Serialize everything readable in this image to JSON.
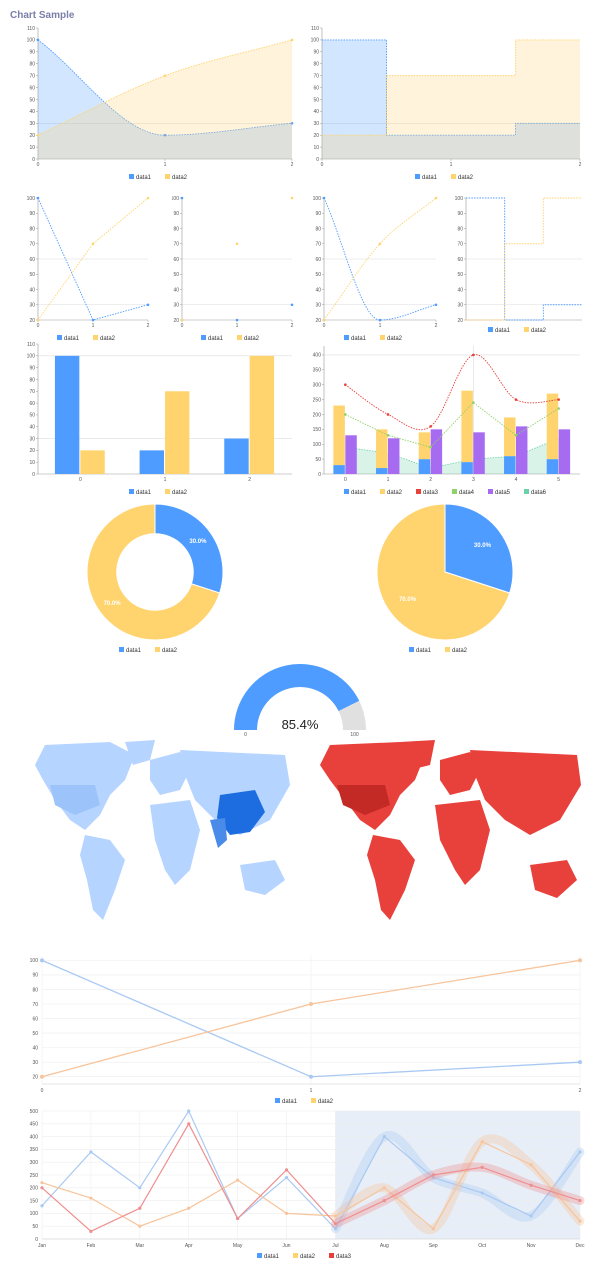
{
  "page_title": "Chart Sample",
  "colors": {
    "data1": "#4e9cff",
    "data2": "#ffd36e",
    "data3": "#e8403b",
    "data4": "#8fd16a",
    "data5": "#a76bf2",
    "data6": "#6ad1a8",
    "axis": "#999999",
    "grid": "#dddddd",
    "gauge_bg": "#e0e0e0",
    "map_blue_light": "#b5d4ff",
    "map_blue_mid": "#9cc4fa",
    "map_blue_dark": "#1e6de0",
    "map_red": "#e8403b",
    "map_red_dark": "#c42a25",
    "soft_blue": "#a9c9f3",
    "soft_orange": "#f7c49b",
    "soft_red": "#ef8e8e",
    "region_bg": "#e7eef7"
  },
  "legend_labels": [
    "data1",
    "data2",
    "data3",
    "data4",
    "data5",
    "data6"
  ],
  "chart_data": [
    {
      "id": "area-spline",
      "type": "area",
      "x": [
        0,
        1,
        2
      ],
      "series": [
        {
          "name": "data1",
          "values": [
            100,
            20,
            30
          ]
        },
        {
          "name": "data2",
          "values": [
            20,
            70,
            100
          ]
        }
      ],
      "ylim": [
        0,
        110
      ],
      "yticks": [
        0,
        10,
        20,
        30,
        40,
        50,
        60,
        70,
        80,
        90,
        100,
        110
      ],
      "xticks": [
        "0",
        "1",
        "2"
      ],
      "grid_y": [
        30
      ],
      "legend": "bottom"
    },
    {
      "id": "area-step",
      "type": "area",
      "x": [
        0,
        1,
        2
      ],
      "series": [
        {
          "name": "data1",
          "values": [
            100,
            20,
            30
          ]
        },
        {
          "name": "data2",
          "values": [
            20,
            70,
            100
          ]
        }
      ],
      "ylim": [
        0,
        110
      ],
      "yticks": [
        0,
        10,
        20,
        30,
        40,
        50,
        60,
        70,
        80,
        90,
        100,
        110
      ],
      "xticks": [
        "0",
        "1",
        "2"
      ],
      "grid_y": [
        30
      ],
      "legend": "bottom"
    },
    {
      "id": "line",
      "type": "line",
      "x": [
        0,
        1,
        2
      ],
      "series": [
        {
          "name": "data1",
          "values": [
            100,
            20,
            30
          ]
        },
        {
          "name": "data2",
          "values": [
            20,
            70,
            100
          ]
        }
      ],
      "ylim": [
        20,
        100
      ],
      "yticks": [
        20,
        30,
        40,
        50,
        60,
        70,
        80,
        90,
        100
      ],
      "xticks": [
        "0",
        "1",
        "2"
      ],
      "grid_y": [
        30,
        60
      ],
      "legend": "bottom"
    },
    {
      "id": "scatter",
      "type": "scatter",
      "x": [
        0,
        1,
        2
      ],
      "series": [
        {
          "name": "data1",
          "values": [
            100,
            20,
            30
          ]
        },
        {
          "name": "data2",
          "values": [
            20,
            70,
            100
          ]
        }
      ],
      "ylim": [
        20,
        100
      ],
      "yticks": [
        20,
        30,
        40,
        50,
        60,
        70,
        80,
        90,
        100
      ],
      "xticks": [
        "0",
        "1",
        "2"
      ],
      "grid_y": [
        30,
        60
      ],
      "legend": "bottom"
    },
    {
      "id": "spline",
      "type": "line",
      "x": [
        0,
        1,
        2
      ],
      "series": [
        {
          "name": "data1",
          "values": [
            100,
            20,
            30
          ]
        },
        {
          "name": "data2",
          "values": [
            20,
            70,
            100
          ]
        }
      ],
      "ylim": [
        20,
        100
      ],
      "yticks": [
        20,
        30,
        40,
        50,
        60,
        70,
        80,
        90,
        100
      ],
      "xticks": [
        "0",
        "1",
        "2"
      ],
      "grid_y": [
        30,
        60
      ],
      "legend": "bottom"
    },
    {
      "id": "step",
      "type": "line",
      "x": [
        0,
        1,
        2
      ],
      "series": [
        {
          "name": "data1",
          "values": [
            100,
            20,
            30
          ]
        },
        {
          "name": "data2",
          "values": [
            20,
            70,
            100
          ]
        }
      ],
      "ylim": [
        20,
        100
      ],
      "yticks": [
        20,
        30,
        40,
        50,
        60,
        70,
        80,
        90,
        100
      ],
      "xticks": [],
      "grid_y": [
        30,
        60
      ],
      "legend": "bottom"
    },
    {
      "id": "bar",
      "type": "bar",
      "categories": [
        "0",
        "1",
        "2"
      ],
      "series": [
        {
          "name": "data1",
          "values": [
            100,
            20,
            30
          ]
        },
        {
          "name": "data2",
          "values": [
            20,
            70,
            100
          ]
        }
      ],
      "ylim": [
        0,
        110
      ],
      "yticks": [
        0,
        10,
        20,
        30,
        40,
        50,
        60,
        70,
        80,
        90,
        100,
        110
      ],
      "grid_y": [
        30,
        100
      ],
      "legend": "bottom"
    },
    {
      "id": "combo",
      "type": "bar",
      "categories": [
        "0",
        "1",
        "2",
        "3",
        "4",
        "5"
      ],
      "stacked_bars": [
        {
          "name": "data1",
          "values": [
            30,
            20,
            50,
            40,
            60,
            50
          ]
        },
        {
          "name": "data2",
          "values": [
            200,
            130,
            90,
            240,
            130,
            220
          ]
        }
      ],
      "bars": [
        {
          "name": "data5",
          "values": [
            130,
            120,
            150,
            140,
            160,
            150
          ]
        }
      ],
      "lines": [
        {
          "name": "data3",
          "style": "spline",
          "values": [
            300,
            200,
            160,
            400,
            250,
            250
          ]
        },
        {
          "name": "data4",
          "style": "line",
          "values": [
            200,
            130,
            90,
            240,
            130,
            220
          ]
        }
      ],
      "areas": [
        {
          "name": "data6",
          "values": [
            90,
            70,
            20,
            50,
            60,
            120
          ]
        }
      ],
      "ylim": [
        0,
        430
      ],
      "yticks": [
        0,
        50,
        100,
        150,
        200,
        250,
        300,
        350,
        400
      ],
      "grid_y": [
        400
      ],
      "grid_x": [
        "3"
      ],
      "legend": "bottom"
    },
    {
      "id": "donut",
      "type": "pie",
      "donut": true,
      "series": [
        {
          "name": "data1",
          "value": 30
        },
        {
          "name": "data2",
          "value": 70
        }
      ],
      "labels": [
        "30.0%",
        "70.0%"
      ],
      "legend": "bottom"
    },
    {
      "id": "pie",
      "type": "pie",
      "series": [
        {
          "name": "data1",
          "value": 30
        },
        {
          "name": "data2",
          "value": 70
        }
      ],
      "labels": [
        "30.0%",
        "70.0%"
      ],
      "legend": "bottom"
    },
    {
      "id": "gauge",
      "type": "gauge",
      "value": 85.4,
      "min": 0,
      "max": 100,
      "label": "85.4%",
      "min_label": "0",
      "max_label": "100"
    },
    {
      "id": "big-line",
      "type": "line",
      "x": [
        0,
        1,
        2
      ],
      "series": [
        {
          "name": "data1",
          "values": [
            100,
            20,
            30
          ]
        },
        {
          "name": "data2",
          "values": [
            20,
            70,
            100
          ]
        }
      ],
      "ylim": [
        15,
        103
      ],
      "yticks": [
        20,
        30,
        40,
        50,
        60,
        70,
        80,
        90,
        100
      ],
      "xticks": [
        "0",
        "1",
        "2"
      ],
      "legend": "bottom"
    },
    {
      "id": "monthly",
      "type": "line",
      "categories": [
        "Jan",
        "Feb",
        "Mar",
        "Apr",
        "May",
        "Jun",
        "Jul",
        "Aug",
        "Sep",
        "Oct",
        "Nov",
        "Dec"
      ],
      "series": [
        {
          "name": "data1",
          "values": [
            130,
            340,
            200,
            500,
            80,
            240,
            40,
            400,
            240,
            180,
            90,
            340
          ]
        },
        {
          "name": "data2",
          "values": [
            220,
            160,
            50,
            120,
            230,
            100,
            90,
            200,
            40,
            380,
            290,
            70
          ]
        },
        {
          "name": "data3",
          "values": [
            200,
            30,
            120,
            450,
            80,
            270,
            60,
            150,
            250,
            280,
            210,
            150
          ]
        }
      ],
      "ylim": [
        0,
        500
      ],
      "yticks": [
        0,
        50,
        100,
        150,
        200,
        250,
        300,
        350,
        400,
        450,
        500
      ],
      "highlight_region": [
        "Jul",
        "Dec"
      ],
      "legend": "bottom"
    }
  ]
}
